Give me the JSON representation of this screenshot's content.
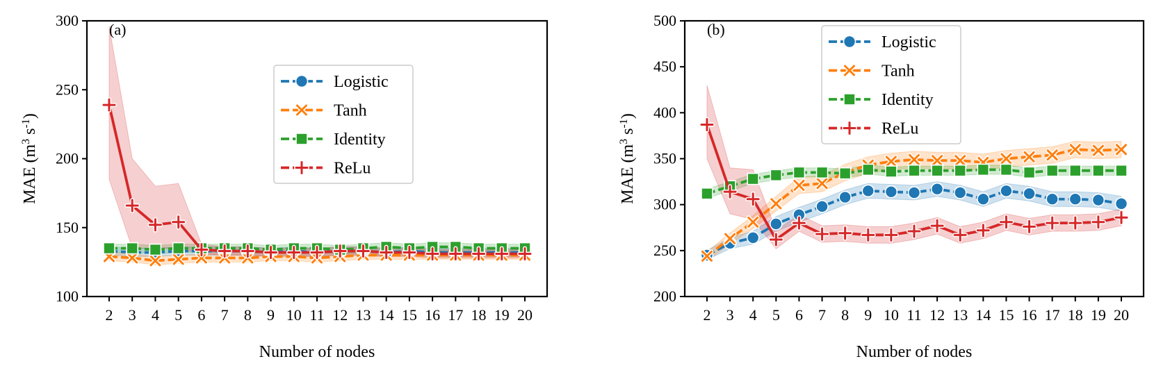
{
  "chart_data": [
    {
      "type": "line",
      "panel_label": "(a)",
      "xlabel": "Number of nodes",
      "ylabel": "MAE (m",
      "ylabel_sup1": "3",
      "ylabel_mid": " s",
      "ylabel_sup2": "-1",
      "ylabel_end": ")",
      "ylim": [
        100,
        300
      ],
      "yticks": [
        100,
        150,
        200,
        250,
        300
      ],
      "x": [
        2,
        3,
        4,
        5,
        6,
        7,
        8,
        9,
        10,
        11,
        12,
        13,
        14,
        15,
        16,
        17,
        18,
        19,
        20
      ],
      "legend_position": "upper-middle",
      "series": [
        {
          "name": "Logistic",
          "color": "#1f77b4",
          "marker": "circle",
          "values": [
            133,
            132,
            132,
            133,
            133,
            133,
            133,
            132,
            133,
            132,
            133,
            133,
            132,
            133,
            132,
            132,
            132,
            132,
            132
          ],
          "band": [
            [
              130,
              136
            ],
            [
              129,
              135
            ],
            [
              129,
              135
            ],
            [
              130,
              136
            ],
            [
              130,
              136
            ],
            [
              130,
              136
            ],
            [
              130,
              136
            ],
            [
              129,
              135
            ],
            [
              130,
              136
            ],
            [
              129,
              135
            ],
            [
              130,
              136
            ],
            [
              130,
              136
            ],
            [
              129,
              135
            ],
            [
              130,
              136
            ],
            [
              129,
              135
            ],
            [
              129,
              135
            ],
            [
              129,
              135
            ],
            [
              129,
              135
            ],
            [
              129,
              135
            ]
          ]
        },
        {
          "name": "Tanh",
          "color": "#ff7f0e",
          "marker": "x",
          "values": [
            129,
            128,
            126,
            127,
            128,
            128,
            128,
            129,
            129,
            128,
            129,
            130,
            130,
            130,
            130,
            130,
            130,
            130,
            130
          ],
          "band": [
            [
              126,
              132
            ],
            [
              125,
              131
            ],
            [
              123,
              129
            ],
            [
              124,
              130
            ],
            [
              125,
              131
            ],
            [
              125,
              131
            ],
            [
              125,
              131
            ],
            [
              126,
              132
            ],
            [
              126,
              132
            ],
            [
              125,
              131
            ],
            [
              126,
              132
            ],
            [
              127,
              133
            ],
            [
              127,
              133
            ],
            [
              127,
              133
            ],
            [
              127,
              133
            ],
            [
              127,
              133
            ],
            [
              127,
              133
            ],
            [
              127,
              133
            ],
            [
              127,
              133
            ]
          ]
        },
        {
          "name": "Identity",
          "color": "#2ca02c",
          "marker": "square",
          "values": [
            135,
            135,
            134,
            135,
            135,
            135,
            135,
            134,
            135,
            135,
            134,
            135,
            136,
            135,
            136,
            136,
            135,
            135,
            135
          ],
          "band": [
            [
              132,
              138
            ],
            [
              132,
              138
            ],
            [
              131,
              137
            ],
            [
              132,
              138
            ],
            [
              132,
              138
            ],
            [
              132,
              138
            ],
            [
              132,
              138
            ],
            [
              131,
              137
            ],
            [
              132,
              138
            ],
            [
              132,
              138
            ],
            [
              131,
              137
            ],
            [
              132,
              138
            ],
            [
              133,
              139
            ],
            [
              132,
              138
            ],
            [
              133,
              139
            ],
            [
              133,
              139
            ],
            [
              132,
              138
            ],
            [
              132,
              138
            ],
            [
              132,
              138
            ]
          ]
        },
        {
          "name": "ReLu",
          "color": "#d62728",
          "marker": "plus",
          "values": [
            239,
            166,
            152,
            154,
            134,
            133,
            133,
            132,
            132,
            132,
            133,
            133,
            132,
            132,
            131,
            131,
            131,
            131,
            131
          ],
          "band": [
            [
              185,
              296
            ],
            [
              135,
              200
            ],
            [
              135,
              180
            ],
            [
              135,
              182
            ],
            [
              131,
              138
            ],
            [
              130,
              136
            ],
            [
              130,
              136
            ],
            [
              129,
              135
            ],
            [
              129,
              135
            ],
            [
              129,
              135
            ],
            [
              130,
              136
            ],
            [
              130,
              136
            ],
            [
              129,
              135
            ],
            [
              129,
              135
            ],
            [
              128,
              134
            ],
            [
              128,
              134
            ],
            [
              128,
              134
            ],
            [
              128,
              134
            ],
            [
              128,
              134
            ]
          ]
        }
      ]
    },
    {
      "type": "line",
      "panel_label": "(b)",
      "xlabel": "Number of nodes",
      "ylabel": "MAE (m",
      "ylabel_sup1": "3",
      "ylabel_mid": " s",
      "ylabel_sup2": "-1",
      "ylabel_end": ")",
      "ylim": [
        200,
        500
      ],
      "yticks": [
        200,
        250,
        300,
        350,
        400,
        450,
        500
      ],
      "x": [
        2,
        3,
        4,
        5,
        6,
        7,
        8,
        9,
        10,
        11,
        12,
        13,
        14,
        15,
        16,
        17,
        18,
        19,
        20
      ],
      "legend_position": "upper-middle",
      "series": [
        {
          "name": "Logistic",
          "color": "#1f77b4",
          "marker": "circle",
          "values": [
            245,
            258,
            264,
            279,
            289,
            298,
            308,
            315,
            314,
            313,
            317,
            313,
            306,
            315,
            312,
            306,
            306,
            305,
            301
          ],
          "band": [
            [
              240,
              250
            ],
            [
              252,
              264
            ],
            [
              257,
              271
            ],
            [
              271,
              287
            ],
            [
              281,
              297
            ],
            [
              290,
              306
            ],
            [
              300,
              316
            ],
            [
              307,
              323
            ],
            [
              306,
              322
            ],
            [
              305,
              321
            ],
            [
              309,
              325
            ],
            [
              305,
              321
            ],
            [
              298,
              314
            ],
            [
              307,
              323
            ],
            [
              304,
              320
            ],
            [
              298,
              314
            ],
            [
              298,
              314
            ],
            [
              297,
              313
            ],
            [
              293,
              309
            ]
          ]
        },
        {
          "name": "Tanh",
          "color": "#ff7f0e",
          "marker": "x",
          "values": [
            244,
            263,
            281,
            301,
            321,
            323,
            335,
            343,
            347,
            349,
            348,
            348,
            346,
            350,
            352,
            354,
            360,
            359,
            360
          ],
          "band": [
            [
              239,
              249
            ],
            [
              257,
              269
            ],
            [
              274,
              288
            ],
            [
              293,
              309
            ],
            [
              312,
              330
            ],
            [
              314,
              332
            ],
            [
              326,
              344
            ],
            [
              334,
              352
            ],
            [
              338,
              356
            ],
            [
              340,
              358
            ],
            [
              339,
              357
            ],
            [
              339,
              357
            ],
            [
              337,
              355
            ],
            [
              341,
              359
            ],
            [
              343,
              361
            ],
            [
              345,
              363
            ],
            [
              351,
              369
            ],
            [
              350,
              368
            ],
            [
              351,
              369
            ]
          ]
        },
        {
          "name": "Identity",
          "color": "#2ca02c",
          "marker": "square",
          "values": [
            312,
            320,
            328,
            332,
            335,
            335,
            334,
            338,
            336,
            337,
            337,
            337,
            338,
            338,
            335,
            337,
            337,
            337,
            337
          ],
          "band": [
            [
              307,
              317
            ],
            [
              315,
              325
            ],
            [
              323,
              333
            ],
            [
              327,
              337
            ],
            [
              330,
              340
            ],
            [
              330,
              340
            ],
            [
              329,
              339
            ],
            [
              333,
              343
            ],
            [
              331,
              341
            ],
            [
              332,
              342
            ],
            [
              332,
              342
            ],
            [
              332,
              342
            ],
            [
              333,
              343
            ],
            [
              333,
              343
            ],
            [
              330,
              340
            ],
            [
              332,
              342
            ],
            [
              332,
              342
            ],
            [
              332,
              342
            ],
            [
              332,
              342
            ]
          ]
        },
        {
          "name": "ReLu",
          "color": "#d62728",
          "marker": "plus",
          "values": [
            387,
            314,
            306,
            262,
            280,
            268,
            269,
            267,
            267,
            271,
            277,
            267,
            272,
            281,
            276,
            280,
            280,
            281,
            286
          ],
          "band": [
            [
              350,
              430
            ],
            [
              290,
              340
            ],
            [
              284,
              338
            ],
            [
              252,
              272
            ],
            [
              271,
              289
            ],
            [
              259,
              277
            ],
            [
              260,
              278
            ],
            [
              258,
              276
            ],
            [
              258,
              276
            ],
            [
              262,
              280
            ],
            [
              268,
              286
            ],
            [
              258,
              276
            ],
            [
              263,
              281
            ],
            [
              272,
              290
            ],
            [
              267,
              285
            ],
            [
              271,
              289
            ],
            [
              271,
              289
            ],
            [
              272,
              290
            ],
            [
              277,
              295
            ]
          ]
        }
      ]
    }
  ]
}
